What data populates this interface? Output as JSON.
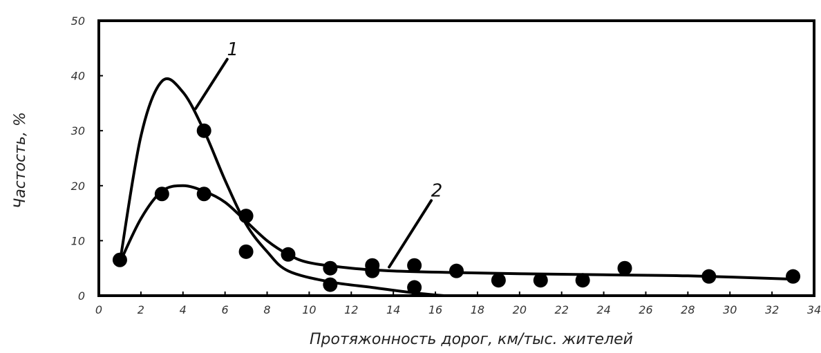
{
  "chart_data": {
    "type": "line",
    "title": "",
    "xlabel": "Протяжонность дорог, км/тыс. жителей",
    "ylabel": "Частость, %",
    "xlim": [
      0,
      34
    ],
    "ylim": [
      0,
      50
    ],
    "x_ticks": [
      "0",
      "2",
      "4",
      "6",
      "8",
      "10",
      "12",
      "14",
      "16",
      "18",
      "20",
      "22",
      "24",
      "26",
      "28",
      "30",
      "32",
      "34"
    ],
    "y_ticks": [
      "0",
      "10",
      "20",
      "30",
      "40",
      "50"
    ],
    "grid": false,
    "legend": "none",
    "series": [
      {
        "name": "1",
        "line_color": "#000000",
        "curve": [
          [
            1,
            6
          ],
          [
            2,
            29
          ],
          [
            3,
            39
          ],
          [
            4,
            37
          ],
          [
            5,
            30
          ],
          [
            6,
            21
          ],
          [
            7,
            13
          ],
          [
            8,
            8
          ],
          [
            9,
            4.5
          ],
          [
            11,
            2.5
          ],
          [
            13,
            1.5
          ],
          [
            15,
            0.5
          ],
          [
            17,
            -0.2
          ]
        ],
        "points": [
          [
            1,
            6.5
          ],
          [
            5,
            30
          ],
          [
            7,
            8
          ],
          [
            11,
            2
          ],
          [
            13,
            4.5
          ],
          [
            15,
            1.5
          ]
        ]
      },
      {
        "name": "2",
        "line_color": "#000000",
        "curve": [
          [
            1,
            6
          ],
          [
            2,
            14
          ],
          [
            3,
            19
          ],
          [
            4,
            20
          ],
          [
            5,
            19
          ],
          [
            6,
            17
          ],
          [
            7,
            13.5
          ],
          [
            8,
            10
          ],
          [
            9,
            7.5
          ],
          [
            10,
            6
          ],
          [
            12,
            5
          ],
          [
            14,
            4.5
          ],
          [
            17,
            4.2
          ],
          [
            20,
            4
          ],
          [
            24,
            3.8
          ],
          [
            28,
            3.6
          ],
          [
            33,
            3
          ]
        ],
        "points": [
          [
            3,
            18.5
          ],
          [
            5,
            18.5
          ],
          [
            7,
            14.5
          ],
          [
            9,
            7.5
          ],
          [
            11,
            5
          ],
          [
            13,
            5.5
          ],
          [
            15,
            5.5
          ],
          [
            17,
            4.5
          ],
          [
            19,
            2.8
          ],
          [
            21,
            2.8
          ],
          [
            23,
            2.8
          ],
          [
            25,
            5
          ],
          [
            29,
            3.5
          ],
          [
            33,
            3.5
          ]
        ]
      }
    ],
    "annotations": [
      {
        "text": "1",
        "label_at": [
          6.3,
          44.5
        ],
        "leader_to": [
          4.6,
          34
        ]
      },
      {
        "text": "2",
        "label_at": [
          16.0,
          18.8
        ],
        "leader_to": [
          13.8,
          5.2
        ]
      }
    ]
  }
}
